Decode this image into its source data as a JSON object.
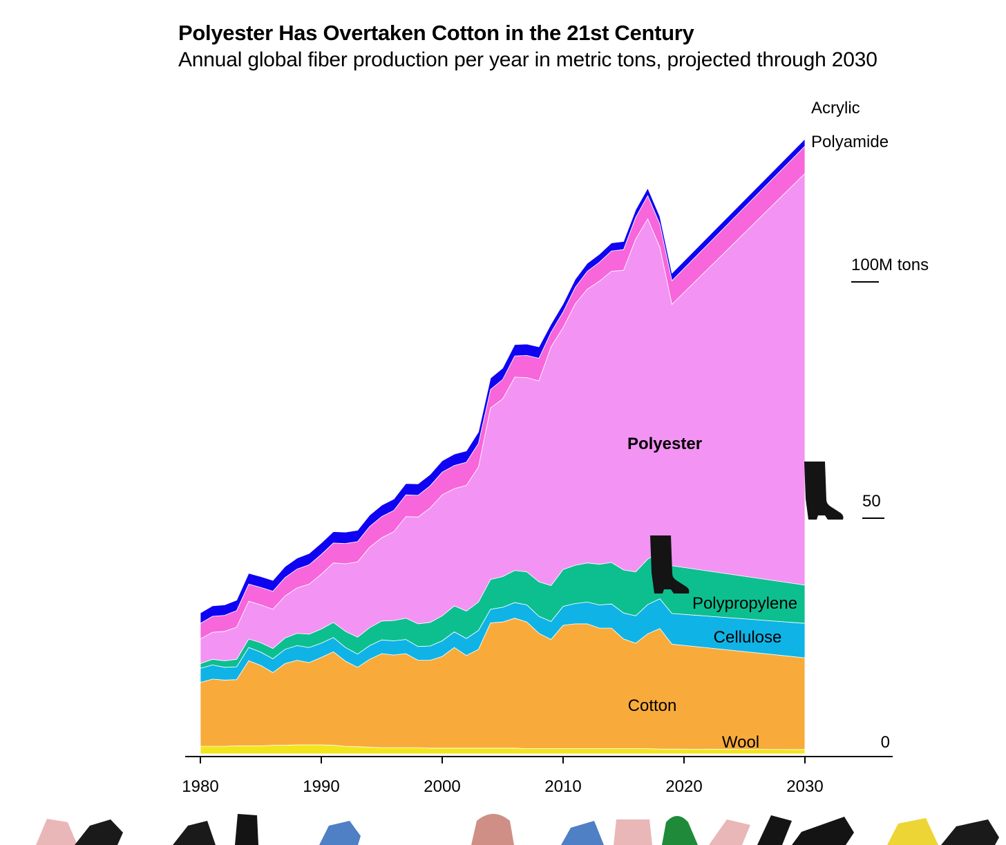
{
  "header": {
    "title": "Polyester Has Overtaken Cotton in the 21st Century",
    "subtitle": "Annual global fiber production per year in metric tons, projected through 2030"
  },
  "chart_data": {
    "type": "area",
    "stacked": true,
    "title": "Polyester Has Overtaken Cotton in the 21st Century",
    "subtitle": "Annual global fiber production per year in metric tons, projected through 2030",
    "x": [
      1980,
      1981,
      1982,
      1983,
      1984,
      1985,
      1986,
      1987,
      1988,
      1989,
      1990,
      1991,
      1992,
      1993,
      1994,
      1995,
      1996,
      1997,
      1998,
      1999,
      2000,
      2001,
      2002,
      2003,
      2004,
      2005,
      2006,
      2007,
      2008,
      2009,
      2010,
      2011,
      2012,
      2013,
      2014,
      2015,
      2016,
      2017,
      2018,
      2019,
      2030
    ],
    "xlim": [
      1980,
      2030
    ],
    "x_ticks": [
      "1980",
      "1990",
      "2000",
      "2010",
      "2020",
      "2030"
    ],
    "ylim": [
      0,
      160
    ],
    "y_ticks": [
      {
        "value": 0,
        "label": "0"
      },
      {
        "value": 50,
        "label": "50"
      },
      {
        "value": 100,
        "label": "100M tons"
      }
    ],
    "unit": "million metric tons",
    "series": [
      {
        "name": "Wool",
        "color": "#f2e51d",
        "values": [
          1.6,
          1.6,
          1.6,
          1.7,
          1.7,
          1.7,
          1.8,
          1.8,
          1.9,
          1.9,
          1.9,
          1.8,
          1.6,
          1.5,
          1.4,
          1.3,
          1.3,
          1.3,
          1.3,
          1.2,
          1.2,
          1.2,
          1.2,
          1.2,
          1.2,
          1.2,
          1.2,
          1.1,
          1.1,
          1.1,
          1.1,
          1.1,
          1.1,
          1.1,
          1.1,
          1.1,
          1.1,
          1.1,
          1.0,
          1.0,
          0.9
        ]
      },
      {
        "name": "Cotton",
        "color": "#f8ab3b",
        "values": [
          13.5,
          14.2,
          14.0,
          14.0,
          18.0,
          17.0,
          15.4,
          17.3,
          17.9,
          17.4,
          18.5,
          19.8,
          18.0,
          16.8,
          18.6,
          19.9,
          19.6,
          19.9,
          18.5,
          18.6,
          19.4,
          21.3,
          19.6,
          20.9,
          26.5,
          26.7,
          27.5,
          26.8,
          24.4,
          23.1,
          26.1,
          26.4,
          26.4,
          25.5,
          25.5,
          23.2,
          22.3,
          24.3,
          25.5,
          22.2,
          19.4
        ]
      },
      {
        "name": "Cellulose",
        "color": "#10b3e6",
        "values": [
          3.0,
          3.0,
          2.7,
          2.7,
          2.8,
          2.8,
          2.9,
          3.0,
          3.1,
          3.2,
          3.0,
          3.0,
          2.9,
          2.8,
          2.9,
          2.9,
          3.0,
          3.0,
          2.9,
          3.0,
          3.3,
          3.3,
          3.6,
          4.0,
          2.9,
          3.1,
          3.3,
          3.6,
          3.6,
          3.8,
          4.0,
          4.3,
          4.6,
          4.9,
          5.1,
          5.5,
          5.8,
          6.2,
          6.3,
          6.5,
          7.3
        ]
      },
      {
        "name": "Polypropylene",
        "color": "#0dbf8f",
        "values": [
          1.0,
          1.2,
          1.4,
          1.6,
          1.8,
          2.0,
          2.2,
          2.4,
          2.6,
          2.8,
          3.0,
          3.2,
          3.4,
          3.6,
          3.8,
          4.0,
          4.3,
          4.5,
          4.8,
          5.0,
          5.3,
          5.5,
          5.8,
          6.0,
          6.3,
          6.5,
          6.8,
          7.0,
          7.3,
          7.6,
          7.8,
          8.1,
          8.3,
          8.6,
          8.8,
          9.1,
          9.3,
          9.6,
          9.8,
          10.1,
          8.1
        ]
      },
      {
        "name": "Polyester",
        "color": "#f393f3",
        "values": [
          5.2,
          5.7,
          6.2,
          6.8,
          8.0,
          8.0,
          8.3,
          8.9,
          9.6,
          10.6,
          11.6,
          12.6,
          14.3,
          15.9,
          17.0,
          17.6,
          18.8,
          21.5,
          22.6,
          24.2,
          25.6,
          24.8,
          26.6,
          28.6,
          36.3,
          37.6,
          40.9,
          41.1,
          42.5,
          50.5,
          51.2,
          55.3,
          57.9,
          59.9,
          61.6,
          63.4,
          70.4,
          72.0,
          64.6,
          55.3,
          87.1
        ]
      },
      {
        "name": "Polyamide",
        "color": "#f766db",
        "values": [
          3.3,
          3.4,
          3.4,
          3.5,
          3.6,
          3.7,
          3.8,
          3.9,
          4.0,
          4.1,
          4.2,
          4.2,
          4.3,
          4.3,
          4.4,
          4.5,
          4.5,
          4.6,
          4.6,
          4.7,
          4.8,
          4.9,
          4.9,
          5.0,
          3.9,
          4.1,
          4.5,
          4.7,
          4.8,
          3.1,
          3.3,
          3.5,
          3.8,
          4.0,
          4.3,
          4.4,
          4.6,
          4.9,
          4.9,
          5.0,
          5.8
        ]
      },
      {
        "name": "Acrylic",
        "color": "#0f03f2",
        "values": [
          2.2,
          2.2,
          2.2,
          2.2,
          2.3,
          2.3,
          2.3,
          2.3,
          2.3,
          2.4,
          2.4,
          2.4,
          2.4,
          2.4,
          2.4,
          2.4,
          2.4,
          2.4,
          2.4,
          2.4,
          2.4,
          2.4,
          2.4,
          2.4,
          2.4,
          2.4,
          2.4,
          2.4,
          2.4,
          1.7,
          1.7,
          1.7,
          1.7,
          1.7,
          1.7,
          1.7,
          1.6,
          1.6,
          1.6,
          1.6,
          1.5
        ]
      }
    ],
    "annotations": [
      "Acrylic",
      "Polyamide",
      "Polyester",
      "Polypropylene",
      "Cellulose",
      "Cotton",
      "Wool"
    ],
    "legend": "none (direct labels)",
    "grid": false
  },
  "decorations": {
    "boot_icon_name": "boot-icon",
    "clothing_strip_icon_names": [
      "pink-jeans-icon",
      "jacket-icon",
      "jacket-icon",
      "boot-icon",
      "denim-jacket-icon",
      "hat-icon",
      "denim-jacket-icon",
      "pink-jeans-icon",
      "hoodie-icon",
      "pink-jeans-icon",
      "boot-icon",
      "boot-icon",
      "yellow-shirt-icon",
      "jacket-icon"
    ]
  }
}
